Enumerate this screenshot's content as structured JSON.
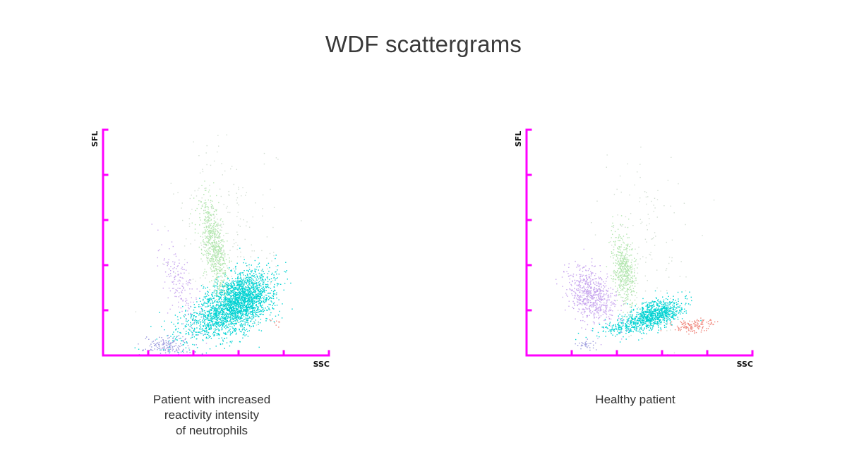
{
  "title": "WDF scattergrams",
  "colors": {
    "axis": "#ff00ff",
    "neutrophils": "#00d2d2",
    "lymphocytes": "#c8a6ee",
    "monocytes": "#b4e6b0",
    "eosinophils": "#f08a80",
    "debris": "#9a98dc",
    "noise": "#c8d6c8"
  },
  "chart_data": [
    {
      "type": "scatter",
      "xlabel": "SSC",
      "ylabel": "SFL",
      "xlim": [
        0,
        5
      ],
      "ylim": [
        0,
        5
      ],
      "xticks": [
        1,
        2,
        3,
        4
      ],
      "yticks": [
        1,
        2,
        3,
        4,
        5
      ],
      "caption": [
        "Patient with increased",
        "reactivity intensity",
        "of neutrophils"
      ],
      "clusters": [
        {
          "color_key": "neutrophils",
          "center": [
            3.0,
            1.2
          ],
          "sd": [
            0.42,
            0.28
          ],
          "rotation_deg": 35,
          "count": 2200
        },
        {
          "color_key": "neutrophils",
          "center": [
            2.2,
            0.75
          ],
          "sd": [
            0.5,
            0.25
          ],
          "rotation_deg": 25,
          "count": 350
        },
        {
          "color_key": "monocytes",
          "center": [
            2.45,
            2.4
          ],
          "sd": [
            0.13,
            0.5
          ],
          "rotation_deg": 10,
          "count": 650
        },
        {
          "color_key": "lymphocytes",
          "center": [
            1.7,
            1.55
          ],
          "sd": [
            0.14,
            0.5
          ],
          "rotation_deg": 20,
          "count": 170
        },
        {
          "color_key": "debris",
          "center": [
            1.4,
            0.22
          ],
          "sd": [
            0.25,
            0.12
          ],
          "rotation_deg": 0,
          "count": 150
        },
        {
          "color_key": "eosinophils",
          "center": [
            3.85,
            0.75
          ],
          "sd": [
            0.08,
            0.05
          ],
          "rotation_deg": 0,
          "count": 8
        },
        {
          "color_key": "noise",
          "center": [
            2.7,
            2.6
          ],
          "sd": [
            0.55,
            1.1
          ],
          "rotation_deg": 0,
          "count": 220
        }
      ]
    },
    {
      "type": "scatter",
      "xlabel": "SSC",
      "ylabel": "SFL",
      "xlim": [
        0,
        5
      ],
      "ylim": [
        0,
        5
      ],
      "xticks": [
        1,
        2,
        3,
        4
      ],
      "yticks": [
        1,
        2,
        3,
        4,
        5
      ],
      "caption": [
        "Healthy patient"
      ],
      "clusters": [
        {
          "color_key": "neutrophils",
          "center": [
            2.8,
            0.9
          ],
          "sd": [
            0.35,
            0.14
          ],
          "rotation_deg": 20,
          "count": 900
        },
        {
          "color_key": "neutrophils",
          "center": [
            2.05,
            0.65
          ],
          "sd": [
            0.3,
            0.08
          ],
          "rotation_deg": 10,
          "count": 120
        },
        {
          "color_key": "lymphocytes",
          "center": [
            1.4,
            1.35
          ],
          "sd": [
            0.22,
            0.35
          ],
          "rotation_deg": 35,
          "count": 650
        },
        {
          "color_key": "monocytes",
          "center": [
            2.15,
            1.9
          ],
          "sd": [
            0.12,
            0.4
          ],
          "rotation_deg": 8,
          "count": 500
        },
        {
          "color_key": "eosinophils",
          "center": [
            3.7,
            0.68
          ],
          "sd": [
            0.22,
            0.07
          ],
          "rotation_deg": 5,
          "count": 140
        },
        {
          "color_key": "debris",
          "center": [
            1.3,
            0.22
          ],
          "sd": [
            0.12,
            0.06
          ],
          "rotation_deg": 0,
          "count": 30
        },
        {
          "color_key": "noise",
          "center": [
            2.6,
            2.4
          ],
          "sd": [
            0.5,
            1.0
          ],
          "rotation_deg": 0,
          "count": 130
        }
      ]
    }
  ]
}
